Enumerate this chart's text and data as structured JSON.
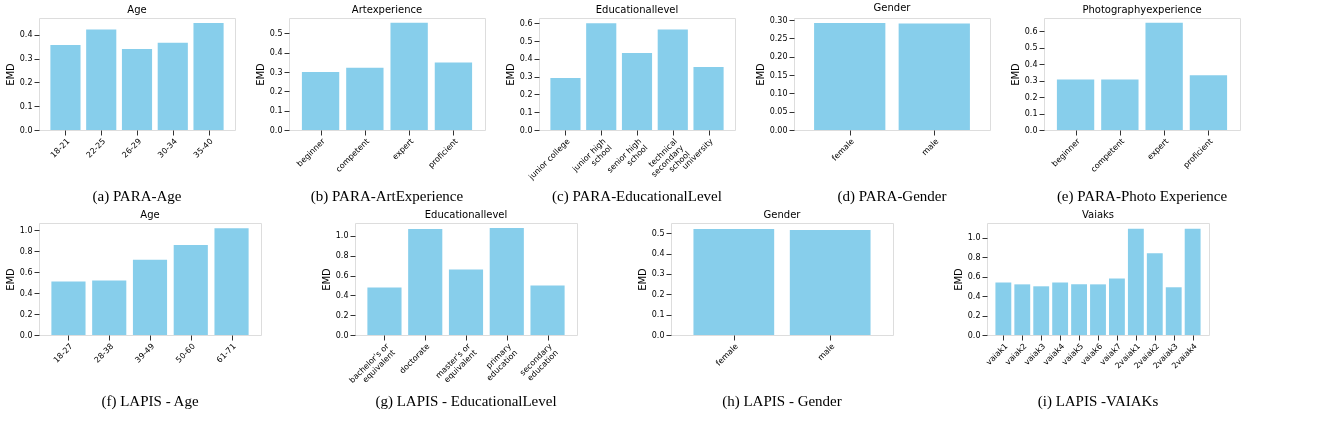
{
  "chart_data": [
    {
      "type": "bar",
      "title": "Age",
      "ylabel": "EMD",
      "categories": [
        "18-21",
        "22-25",
        "26-29",
        "30-34",
        "35-40"
      ],
      "values": [
        0.357,
        0.422,
        0.34,
        0.366,
        0.449
      ],
      "color": "#87ceeb",
      "ylim": [
        0,
        0.47
      ],
      "yticks": [
        {
          "value": 0,
          "label": "0.0"
        },
        0.1,
        0.2,
        0.3,
        0.4
      ],
      "grid": false,
      "annotations": [
        "(a) PARA-Age"
      ]
    },
    {
      "type": "bar",
      "title": "Artexperience",
      "ylabel": "EMD",
      "categories": [
        "beginner",
        "competent",
        "expert",
        "proficient"
      ],
      "values": [
        0.301,
        0.323,
        0.556,
        0.349
      ],
      "color": "#87ceeb",
      "ylim": [
        0,
        0.58
      ],
      "yticks": [
        {
          "value": 0,
          "label": "0.0"
        },
        0.1,
        0.2,
        0.3,
        0.4,
        0.5
      ],
      "grid": false,
      "annotations": [
        "(b) PARA-ArtExperience"
      ]
    },
    {
      "type": "bar",
      "title": "Educationallevel",
      "ylabel": "EMD",
      "categories": [
        "junior college",
        "junior high\nschool",
        "senior high\nschool",
        "technical\nsecondary\nschool",
        "university"
      ],
      "values": [
        0.293,
        0.6,
        0.433,
        0.565,
        0.354
      ],
      "color": "#87ceeb",
      "ylim": [
        0,
        0.63
      ],
      "yticks": [
        {
          "value": 0,
          "label": "0.0"
        },
        0.1,
        0.2,
        0.3,
        0.4,
        0.5,
        0.6
      ],
      "grid": false,
      "annotations": [
        "(c) PARA-EducationalLevel"
      ]
    },
    {
      "type": "bar",
      "title": "Gender",
      "ylabel": "EMD",
      "categories": [
        "female",
        "male"
      ],
      "values": [
        0.292,
        0.291
      ],
      "color": "#87ceeb",
      "ylim": [
        0,
        0.306
      ],
      "yticks": [
        {
          "value": 0,
          "label": "0.00"
        },
        0.05,
        {
          "value": 0.1,
          "label": "0.10"
        },
        0.15,
        {
          "value": 0.2,
          "label": "0.20"
        },
        0.25,
        {
          "value": 0.3,
          "label": "0.30"
        }
      ],
      "grid": false,
      "annotations": [
        "(d) PARA-Gender"
      ]
    },
    {
      "type": "bar",
      "title": "Photographyexperience",
      "ylabel": "EMD",
      "categories": [
        "beginner",
        "competent",
        "expert",
        "proficient"
      ],
      "values": [
        0.306,
        0.307,
        0.651,
        0.333
      ],
      "color": "#87ceeb",
      "ylim": [
        0,
        0.68
      ],
      "yticks": [
        {
          "value": 0,
          "label": "0.0"
        },
        0.1,
        0.2,
        0.3,
        0.4,
        0.5,
        0.6
      ],
      "grid": false,
      "annotations": [
        "(e) PARA-Photo Experience"
      ]
    },
    {
      "type": "bar",
      "title": "Age",
      "ylabel": "EMD",
      "categories": [
        "18-27",
        "28-38",
        "39-49",
        "50-60",
        "61-71"
      ],
      "values": [
        0.51,
        0.52,
        0.72,
        0.86,
        1.02
      ],
      "color": "#87ceeb",
      "ylim": [
        0,
        1.07
      ],
      "yticks": [
        {
          "value": 0,
          "label": "0.0"
        },
        0.2,
        0.4,
        0.6,
        0.8,
        {
          "value": 1,
          "label": "1.0"
        }
      ],
      "grid": false,
      "annotations": [
        "(f) LAPIS - Age"
      ]
    },
    {
      "type": "bar",
      "title": "Educationallevel",
      "ylabel": "EMD",
      "categories": [
        "bachelor's or\nequivalent",
        "doctorate",
        "master's or\nequivalent",
        "primary\neducation",
        "secondary\neducation"
      ],
      "values": [
        0.48,
        1.07,
        0.66,
        1.08,
        0.5
      ],
      "color": "#87ceeb",
      "ylim": [
        0,
        1.13
      ],
      "yticks": [
        {
          "value": 0,
          "label": "0.0"
        },
        0.2,
        0.4,
        0.6,
        0.8,
        {
          "value": 1,
          "label": "1.0"
        }
      ],
      "grid": false,
      "annotations": [
        "(g) LAPIS - EducationalLevel"
      ]
    },
    {
      "type": "bar",
      "title": "Gender",
      "ylabel": "EMD",
      "categories": [
        "female",
        "male"
      ],
      "values": [
        0.521,
        0.516
      ],
      "color": "#87ceeb",
      "ylim": [
        0,
        0.55
      ],
      "yticks": [
        {
          "value": 0,
          "label": "0.0"
        },
        0.1,
        0.2,
        0.3,
        0.4,
        0.5
      ],
      "grid": false,
      "annotations": [
        "(h) LAPIS - Gender"
      ]
    },
    {
      "type": "bar",
      "title": "Vaiaks",
      "ylabel": "EMD",
      "categories": [
        "vaiak1",
        "vaiak2",
        "vaiak3",
        "vaiak4",
        "vaiak5",
        "vaiak6",
        "vaiak7",
        "2vaiak1",
        "2vaiak2",
        "2vaiak3",
        "2vaiak4"
      ],
      "values": [
        0.54,
        0.52,
        0.5,
        0.54,
        0.52,
        0.52,
        0.58,
        1.09,
        0.84,
        0.49,
        1.09
      ],
      "color": "#87ceeb",
      "ylim": [
        0,
        1.15
      ],
      "yticks": [
        {
          "value": 0,
          "label": "0.0"
        },
        0.2,
        0.4,
        0.6,
        0.8,
        {
          "value": 1,
          "label": "1.0"
        }
      ],
      "grid": false,
      "annotations": [
        "(i) LAPIS -VAIAKs"
      ]
    }
  ]
}
